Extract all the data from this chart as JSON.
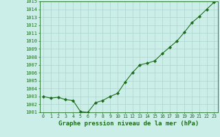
{
  "x": [
    0,
    1,
    2,
    3,
    4,
    5,
    6,
    7,
    8,
    9,
    10,
    11,
    12,
    13,
    14,
    15,
    16,
    17,
    18,
    19,
    20,
    21,
    22,
    23
  ],
  "y": [
    1003.0,
    1002.8,
    1002.9,
    1002.6,
    1002.5,
    1001.1,
    1001.0,
    1002.2,
    1002.5,
    1003.0,
    1003.4,
    1004.8,
    1006.0,
    1007.0,
    1007.2,
    1007.5,
    1008.4,
    1009.2,
    1010.0,
    1011.1,
    1012.3,
    1013.1,
    1014.0,
    1014.9
  ],
  "line_color": "#1a6b1a",
  "marker": "D",
  "marker_size": 2.2,
  "bg_color": "#cceee8",
  "grid_color": "#aad4cc",
  "axis_color": "#1a6b1a",
  "xlabel": "Graphe pression niveau de la mer (hPa)",
  "xlabel_fontsize": 6.5,
  "ylim": [
    1001,
    1015
  ],
  "xlim": [
    -0.5,
    23.5
  ],
  "yticks": [
    1001,
    1002,
    1003,
    1004,
    1005,
    1006,
    1007,
    1008,
    1009,
    1010,
    1011,
    1012,
    1013,
    1014,
    1015
  ],
  "xticks": [
    0,
    1,
    2,
    3,
    4,
    5,
    6,
    7,
    8,
    9,
    10,
    11,
    12,
    13,
    14,
    15,
    16,
    17,
    18,
    19,
    20,
    21,
    22,
    23
  ],
  "ytick_fontsize": 5.0,
  "xtick_fontsize": 4.8,
  "spine_color": "#1a6b1a",
  "linewidth": 0.8
}
